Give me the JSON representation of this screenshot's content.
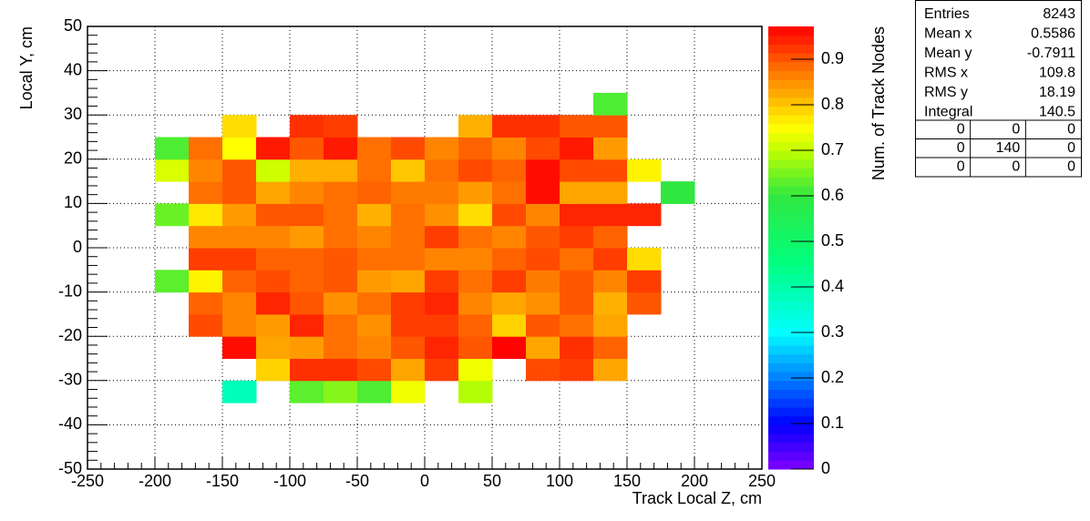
{
  "chart_data": {
    "type": "heatmap",
    "xlabel": "Track Local Z, cm",
    "ylabel": "Local Y, cm",
    "zlabel": "Num. of Track Nodes",
    "xlim": [
      -250,
      250
    ],
    "ylim": [
      -50,
      50
    ],
    "zlim": [
      0,
      0.972
    ],
    "xticks": [
      -250,
      -200,
      -150,
      -100,
      -50,
      0,
      50,
      100,
      150,
      200,
      250
    ],
    "yticks": [
      -50,
      -40,
      -30,
      -20,
      -10,
      0,
      10,
      20,
      30,
      40,
      50
    ],
    "zticks": [
      0,
      0.1,
      0.2,
      0.3,
      0.4,
      0.5,
      0.6,
      0.7,
      0.8,
      0.9
    ],
    "grid": true,
    "colorscale": [
      [
        0,
        "#8000ff"
      ],
      [
        0.1,
        "#0000ff"
      ],
      [
        0.2,
        "#0080ff"
      ],
      [
        0.3,
        "#00ffff"
      ],
      [
        0.45,
        "#00ff80"
      ],
      [
        0.6,
        "#30e840"
      ],
      [
        0.7,
        "#c0ff00"
      ],
      [
        0.75,
        "#ffff00"
      ],
      [
        0.82,
        "#ffb000"
      ],
      [
        0.88,
        "#ff7000"
      ],
      [
        0.93,
        "#ff3000"
      ],
      [
        0.972,
        "#ff0000"
      ]
    ],
    "x_edges": [
      -200,
      -175,
      -150,
      -125,
      -100,
      -75,
      -50,
      -25,
      0,
      25,
      50,
      75,
      100,
      125,
      150,
      175,
      200
    ],
    "y_edges": [
      -35,
      -30,
      -25,
      -20,
      -15,
      -10,
      -5,
      0,
      5,
      10,
      15,
      20,
      25,
      30,
      35
    ],
    "z": [
      [
        null,
        null,
        0.38,
        null,
        0.63,
        0.66,
        0.62,
        0.74,
        null,
        0.69,
        null,
        null,
        null,
        null,
        null,
        null
      ],
      [
        null,
        null,
        null,
        0.79,
        0.93,
        0.93,
        0.91,
        0.83,
        0.92,
        0.74,
        null,
        0.91,
        0.92,
        0.83,
        null,
        null
      ],
      [
        null,
        null,
        0.96,
        0.83,
        0.84,
        0.88,
        0.86,
        0.9,
        0.94,
        0.9,
        0.97,
        0.83,
        0.93,
        0.89,
        null,
        null
      ],
      [
        null,
        0.91,
        0.86,
        0.84,
        0.94,
        0.88,
        0.85,
        0.92,
        0.92,
        0.89,
        0.79,
        0.9,
        0.88,
        0.83,
        null,
        null
      ],
      [
        null,
        0.89,
        0.86,
        0.94,
        0.9,
        0.85,
        0.88,
        0.92,
        0.94,
        0.86,
        0.83,
        0.85,
        0.9,
        0.82,
        0.9,
        null
      ],
      [
        0.63,
        0.76,
        0.89,
        0.91,
        0.89,
        0.9,
        0.84,
        0.83,
        0.92,
        0.88,
        0.92,
        0.87,
        0.9,
        0.86,
        0.92,
        null
      ],
      [
        null,
        0.92,
        0.92,
        0.89,
        0.89,
        0.9,
        0.88,
        0.88,
        0.86,
        0.86,
        0.89,
        0.91,
        0.88,
        0.92,
        0.78,
        null
      ],
      [
        null,
        0.86,
        0.86,
        0.86,
        0.84,
        0.88,
        0.86,
        0.88,
        0.92,
        0.88,
        0.86,
        0.9,
        0.92,
        0.89,
        null,
        null
      ],
      [
        0.64,
        0.77,
        0.84,
        0.9,
        0.9,
        0.88,
        0.82,
        0.88,
        0.85,
        0.78,
        0.91,
        0.86,
        0.94,
        0.94,
        0.94,
        null
      ],
      [
        null,
        0.88,
        0.9,
        0.83,
        0.86,
        0.88,
        0.89,
        0.87,
        0.87,
        0.84,
        0.88,
        0.96,
        0.83,
        0.83,
        null,
        0.6
      ],
      [
        0.72,
        0.86,
        0.9,
        0.71,
        0.82,
        0.82,
        0.88,
        0.8,
        0.88,
        0.91,
        0.89,
        0.96,
        0.91,
        0.91,
        0.76,
        null
      ],
      [
        0.62,
        0.88,
        0.75,
        0.95,
        0.9,
        0.95,
        0.88,
        0.91,
        0.86,
        0.89,
        0.86,
        0.91,
        0.95,
        0.84,
        null,
        null
      ],
      [
        null,
        null,
        0.78,
        null,
        0.93,
        0.92,
        null,
        null,
        null,
        0.82,
        0.93,
        0.93,
        0.9,
        0.9,
        null,
        null
      ],
      [
        null,
        null,
        null,
        null,
        null,
        null,
        null,
        null,
        null,
        null,
        null,
        null,
        null,
        0.62,
        null,
        null
      ]
    ],
    "stats": {
      "rows": [
        [
          "Entries",
          8243
        ],
        [
          "Mean x",
          0.5586
        ],
        [
          "Mean y",
          -0.7911
        ],
        [
          "RMS x",
          109.8
        ],
        [
          "RMS y",
          18.19
        ],
        [
          "Integral",
          140.5
        ]
      ],
      "table": [
        [
          0,
          0,
          0
        ],
        [
          0,
          140,
          0
        ],
        [
          0,
          0,
          0
        ]
      ]
    }
  }
}
